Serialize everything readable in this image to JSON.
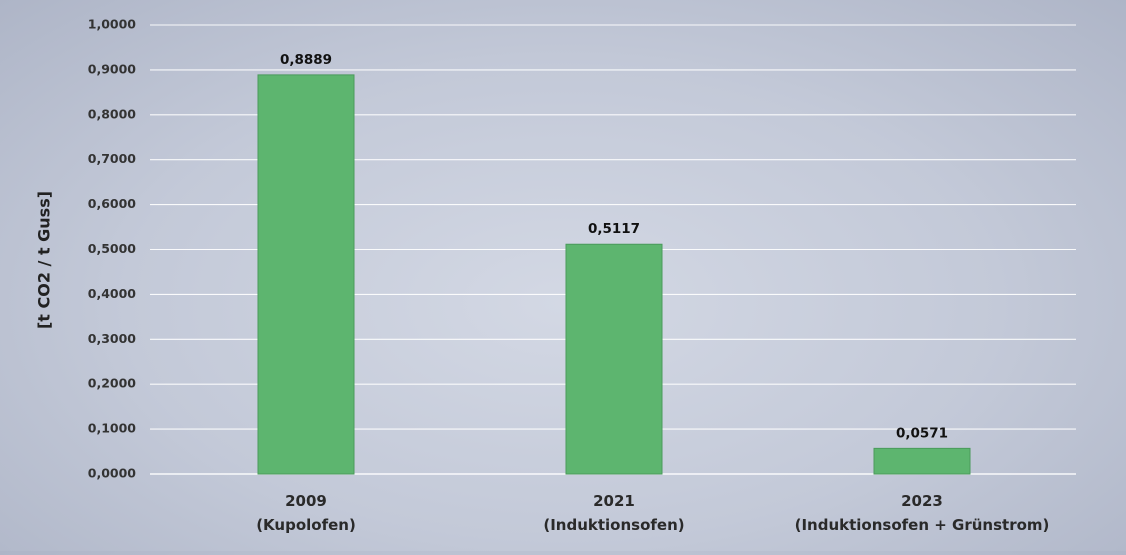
{
  "chart_data": {
    "type": "bar",
    "title": "",
    "ylabel": "[t CO2 / t Guss]",
    "xlabel": "",
    "ylim": [
      0,
      1
    ],
    "yticks": [
      "0,0000",
      "0,1000",
      "0,2000",
      "0,3000",
      "0,4000",
      "0,5000",
      "0,6000",
      "0,7000",
      "0,8000",
      "0,9000",
      "1,0000"
    ],
    "grid": true,
    "legend": "none",
    "categories": [
      {
        "line1": "2009",
        "line2": "(Kupolofen)"
      },
      {
        "line1": "2021",
        "line2": "(Induktionsofen)"
      },
      {
        "line1": "2023",
        "line2": "(Induktionsofen + Grünstrom)"
      }
    ],
    "values": [
      0.8889,
      0.5117,
      0.0571
    ],
    "data_labels": [
      "0,8889",
      "0,5117",
      "0,0571"
    ],
    "colors": {
      "bar": "#5db56f",
      "bar_edge": "#4a9a5b",
      "grid": "#ffffff"
    }
  }
}
